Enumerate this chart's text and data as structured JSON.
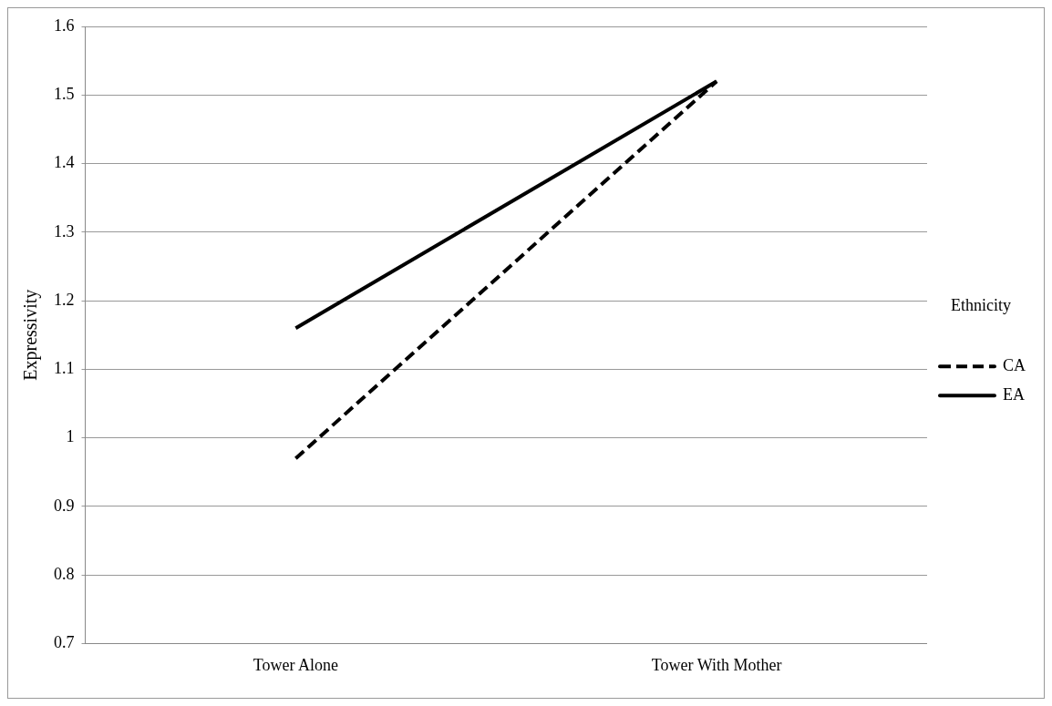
{
  "chart_data": {
    "type": "line",
    "ylabel": "Expressivity",
    "legend_title": "Ethnicity",
    "categories": [
      "Tower Alone",
      "Tower With Mother"
    ],
    "series": [
      {
        "name": "CA",
        "color": "#000000",
        "values": [
          0.97,
          1.52
        ],
        "line_style": "dashed"
      },
      {
        "name": "EA",
        "color": "#000000",
        "values": [
          1.16,
          1.52
        ],
        "line_style": "solid"
      }
    ],
    "ylim": [
      0.7,
      1.6
    ],
    "yticks": [
      0.7,
      0.8,
      0.9,
      1,
      1.1,
      1.2,
      1.3,
      1.4,
      1.5,
      1.6
    ],
    "grid": "y",
    "legend": "right",
    "marker": "none"
  }
}
